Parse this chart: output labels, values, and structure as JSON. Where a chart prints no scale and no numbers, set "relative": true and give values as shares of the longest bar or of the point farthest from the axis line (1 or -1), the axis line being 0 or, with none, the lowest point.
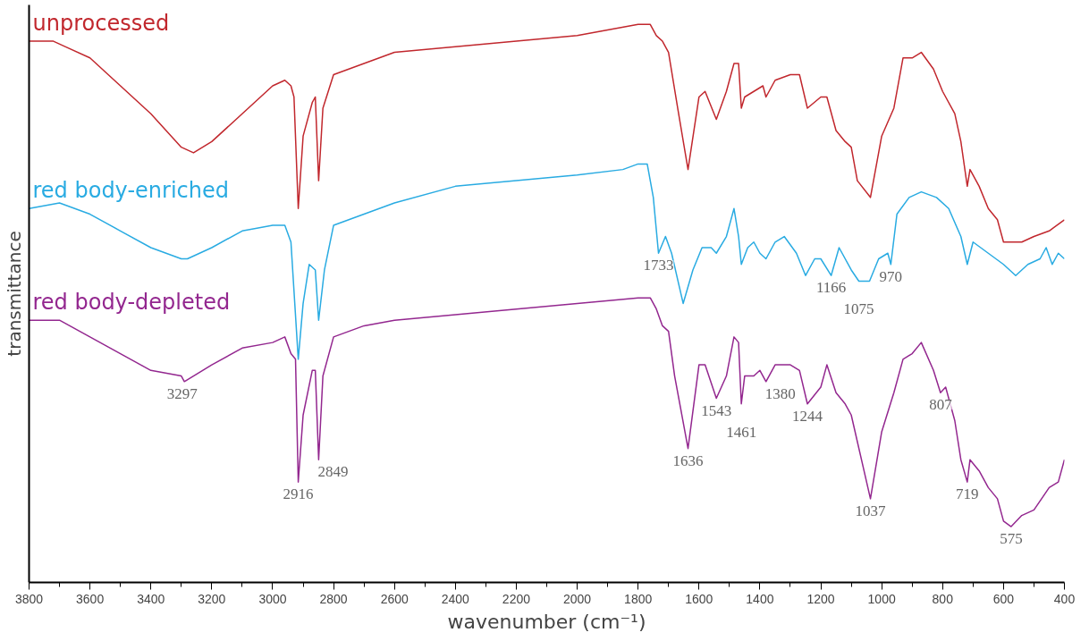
{
  "chart_data": {
    "type": "line",
    "relative": true,
    "xlabel": "wavenumber (cm⁻¹)",
    "ylabel": "transmittance",
    "xlim": [
      3800,
      400
    ],
    "xticks": [
      3800,
      3600,
      3400,
      3200,
      3000,
      2800,
      2600,
      2400,
      2200,
      2000,
      1800,
      1600,
      1400,
      1200,
      1000,
      800,
      600,
      400
    ],
    "series": [
      {
        "name": "unprocessed",
        "color": "#c1272d",
        "x": [
          3800,
          3720,
          3680,
          3600,
          3500,
          3400,
          3300,
          3260,
          3200,
          3100,
          3000,
          2960,
          2940,
          2930,
          2916,
          2900,
          2870,
          2860,
          2849,
          2835,
          2800,
          2700,
          2600,
          2400,
          2200,
          2000,
          1900,
          1800,
          1760,
          1740,
          1720,
          1700,
          1670,
          1636,
          1600,
          1580,
          1543,
          1510,
          1485,
          1470,
          1461,
          1450,
          1420,
          1390,
          1380,
          1350,
          1300,
          1270,
          1244,
          1200,
          1180,
          1150,
          1120,
          1100,
          1080,
          1037,
          1000,
          960,
          930,
          900,
          870,
          830,
          800,
          760,
          740,
          719,
          710,
          680,
          650,
          620,
          600,
          575,
          540,
          500,
          450,
          400
        ],
        "values": [
          0.97,
          0.97,
          0.96,
          0.94,
          0.89,
          0.84,
          0.78,
          0.77,
          0.79,
          0.84,
          0.89,
          0.9,
          0.89,
          0.87,
          0.67,
          0.8,
          0.86,
          0.87,
          0.72,
          0.85,
          0.91,
          0.93,
          0.95,
          0.96,
          0.97,
          0.98,
          0.99,
          1.0,
          1.0,
          0.98,
          0.97,
          0.95,
          0.85,
          0.74,
          0.87,
          0.88,
          0.83,
          0.88,
          0.93,
          0.93,
          0.85,
          0.87,
          0.88,
          0.89,
          0.87,
          0.9,
          0.91,
          0.91,
          0.85,
          0.87,
          0.87,
          0.81,
          0.79,
          0.78,
          0.72,
          0.69,
          0.8,
          0.85,
          0.94,
          0.94,
          0.95,
          0.92,
          0.88,
          0.84,
          0.79,
          0.71,
          0.74,
          0.71,
          0.67,
          0.65,
          0.61,
          0.61,
          0.61,
          0.62,
          0.63,
          0.65
        ]
      },
      {
        "name": "red body-enriched",
        "color": "#29abe2",
        "x": [
          3800,
          3700,
          3600,
          3500,
          3400,
          3300,
          3280,
          3200,
          3100,
          3000,
          2960,
          2940,
          2916,
          2900,
          2880,
          2860,
          2849,
          2830,
          2800,
          2700,
          2600,
          2400,
          2200,
          2000,
          1850,
          1800,
          1770,
          1750,
          1733,
          1710,
          1690,
          1652,
          1620,
          1590,
          1560,
          1543,
          1510,
          1485,
          1470,
          1461,
          1440,
          1420,
          1400,
          1380,
          1350,
          1320,
          1280,
          1250,
          1220,
          1200,
          1166,
          1140,
          1100,
          1075,
          1040,
          1010,
          980,
          970,
          950,
          910,
          870,
          820,
          780,
          740,
          719,
          700,
          650,
          600,
          560,
          520,
          480,
          460,
          440,
          420,
          400
        ],
        "values": [
          0.67,
          0.68,
          0.66,
          0.63,
          0.6,
          0.58,
          0.58,
          0.6,
          0.63,
          0.64,
          0.64,
          0.61,
          0.4,
          0.5,
          0.57,
          0.56,
          0.47,
          0.56,
          0.64,
          0.66,
          0.68,
          0.71,
          0.72,
          0.73,
          0.74,
          0.75,
          0.75,
          0.69,
          0.59,
          0.62,
          0.59,
          0.5,
          0.56,
          0.6,
          0.6,
          0.59,
          0.62,
          0.67,
          0.62,
          0.57,
          0.6,
          0.61,
          0.59,
          0.58,
          0.61,
          0.62,
          0.59,
          0.55,
          0.58,
          0.58,
          0.55,
          0.6,
          0.56,
          0.54,
          0.54,
          0.58,
          0.59,
          0.57,
          0.66,
          0.69,
          0.7,
          0.69,
          0.67,
          0.62,
          0.57,
          0.61,
          0.59,
          0.57,
          0.55,
          0.57,
          0.58,
          0.6,
          0.57,
          0.59,
          0.58
        ]
      },
      {
        "name": "red body-depleted",
        "color": "#93278f",
        "x": [
          3800,
          3700,
          3600,
          3500,
          3400,
          3300,
          3290,
          3200,
          3100,
          3000,
          2960,
          2940,
          2925,
          2916,
          2900,
          2870,
          2860,
          2849,
          2835,
          2800,
          2700,
          2600,
          2400,
          2200,
          2000,
          1800,
          1760,
          1740,
          1720,
          1700,
          1680,
          1636,
          1600,
          1580,
          1543,
          1510,
          1485,
          1470,
          1461,
          1450,
          1420,
          1400,
          1380,
          1350,
          1300,
          1270,
          1244,
          1200,
          1180,
          1150,
          1120,
          1100,
          1037,
          1000,
          960,
          930,
          900,
          870,
          830,
          807,
          790,
          760,
          740,
          719,
          710,
          680,
          650,
          620,
          600,
          575,
          540,
          500,
          450,
          420,
          400
        ],
        "values": [
          0.47,
          0.47,
          0.44,
          0.41,
          0.38,
          0.37,
          0.36,
          0.39,
          0.42,
          0.43,
          0.44,
          0.41,
          0.4,
          0.18,
          0.3,
          0.38,
          0.38,
          0.22,
          0.37,
          0.44,
          0.46,
          0.47,
          0.48,
          0.49,
          0.5,
          0.51,
          0.51,
          0.49,
          0.46,
          0.45,
          0.37,
          0.24,
          0.39,
          0.39,
          0.33,
          0.37,
          0.44,
          0.43,
          0.32,
          0.37,
          0.37,
          0.38,
          0.36,
          0.39,
          0.39,
          0.38,
          0.32,
          0.35,
          0.39,
          0.34,
          0.32,
          0.3,
          0.15,
          0.27,
          0.34,
          0.4,
          0.41,
          0.43,
          0.38,
          0.34,
          0.35,
          0.29,
          0.22,
          0.18,
          0.22,
          0.2,
          0.17,
          0.15,
          0.11,
          0.1,
          0.12,
          0.13,
          0.17,
          0.18,
          0.22
        ]
      }
    ],
    "annotations": [
      {
        "text": "3297",
        "x": 3297,
        "y": 0.36
      },
      {
        "text": "2916",
        "x": 2916,
        "y": 0.18
      },
      {
        "text": "2849",
        "x": 2849,
        "y": 0.22
      },
      {
        "text": "1733",
        "x": 1733,
        "y": 0.59
      },
      {
        "text": "1166",
        "x": 1166,
        "y": 0.55
      },
      {
        "text": "1075",
        "x": 1075,
        "y": 0.54
      },
      {
        "text": "970",
        "x": 970,
        "y": 0.57
      },
      {
        "text": "1636",
        "x": 1636,
        "y": 0.24
      },
      {
        "text": "1543",
        "x": 1543,
        "y": 0.33
      },
      {
        "text": "1461",
        "x": 1461,
        "y": 0.32
      },
      {
        "text": "1380",
        "x": 1380,
        "y": 0.36
      },
      {
        "text": "1244",
        "x": 1244,
        "y": 0.32
      },
      {
        "text": "1037",
        "x": 1037,
        "y": 0.15
      },
      {
        "text": "807",
        "x": 807,
        "y": 0.34
      },
      {
        "text": "719",
        "x": 719,
        "y": 0.18
      },
      {
        "text": "575",
        "x": 575,
        "y": 0.1
      }
    ]
  }
}
